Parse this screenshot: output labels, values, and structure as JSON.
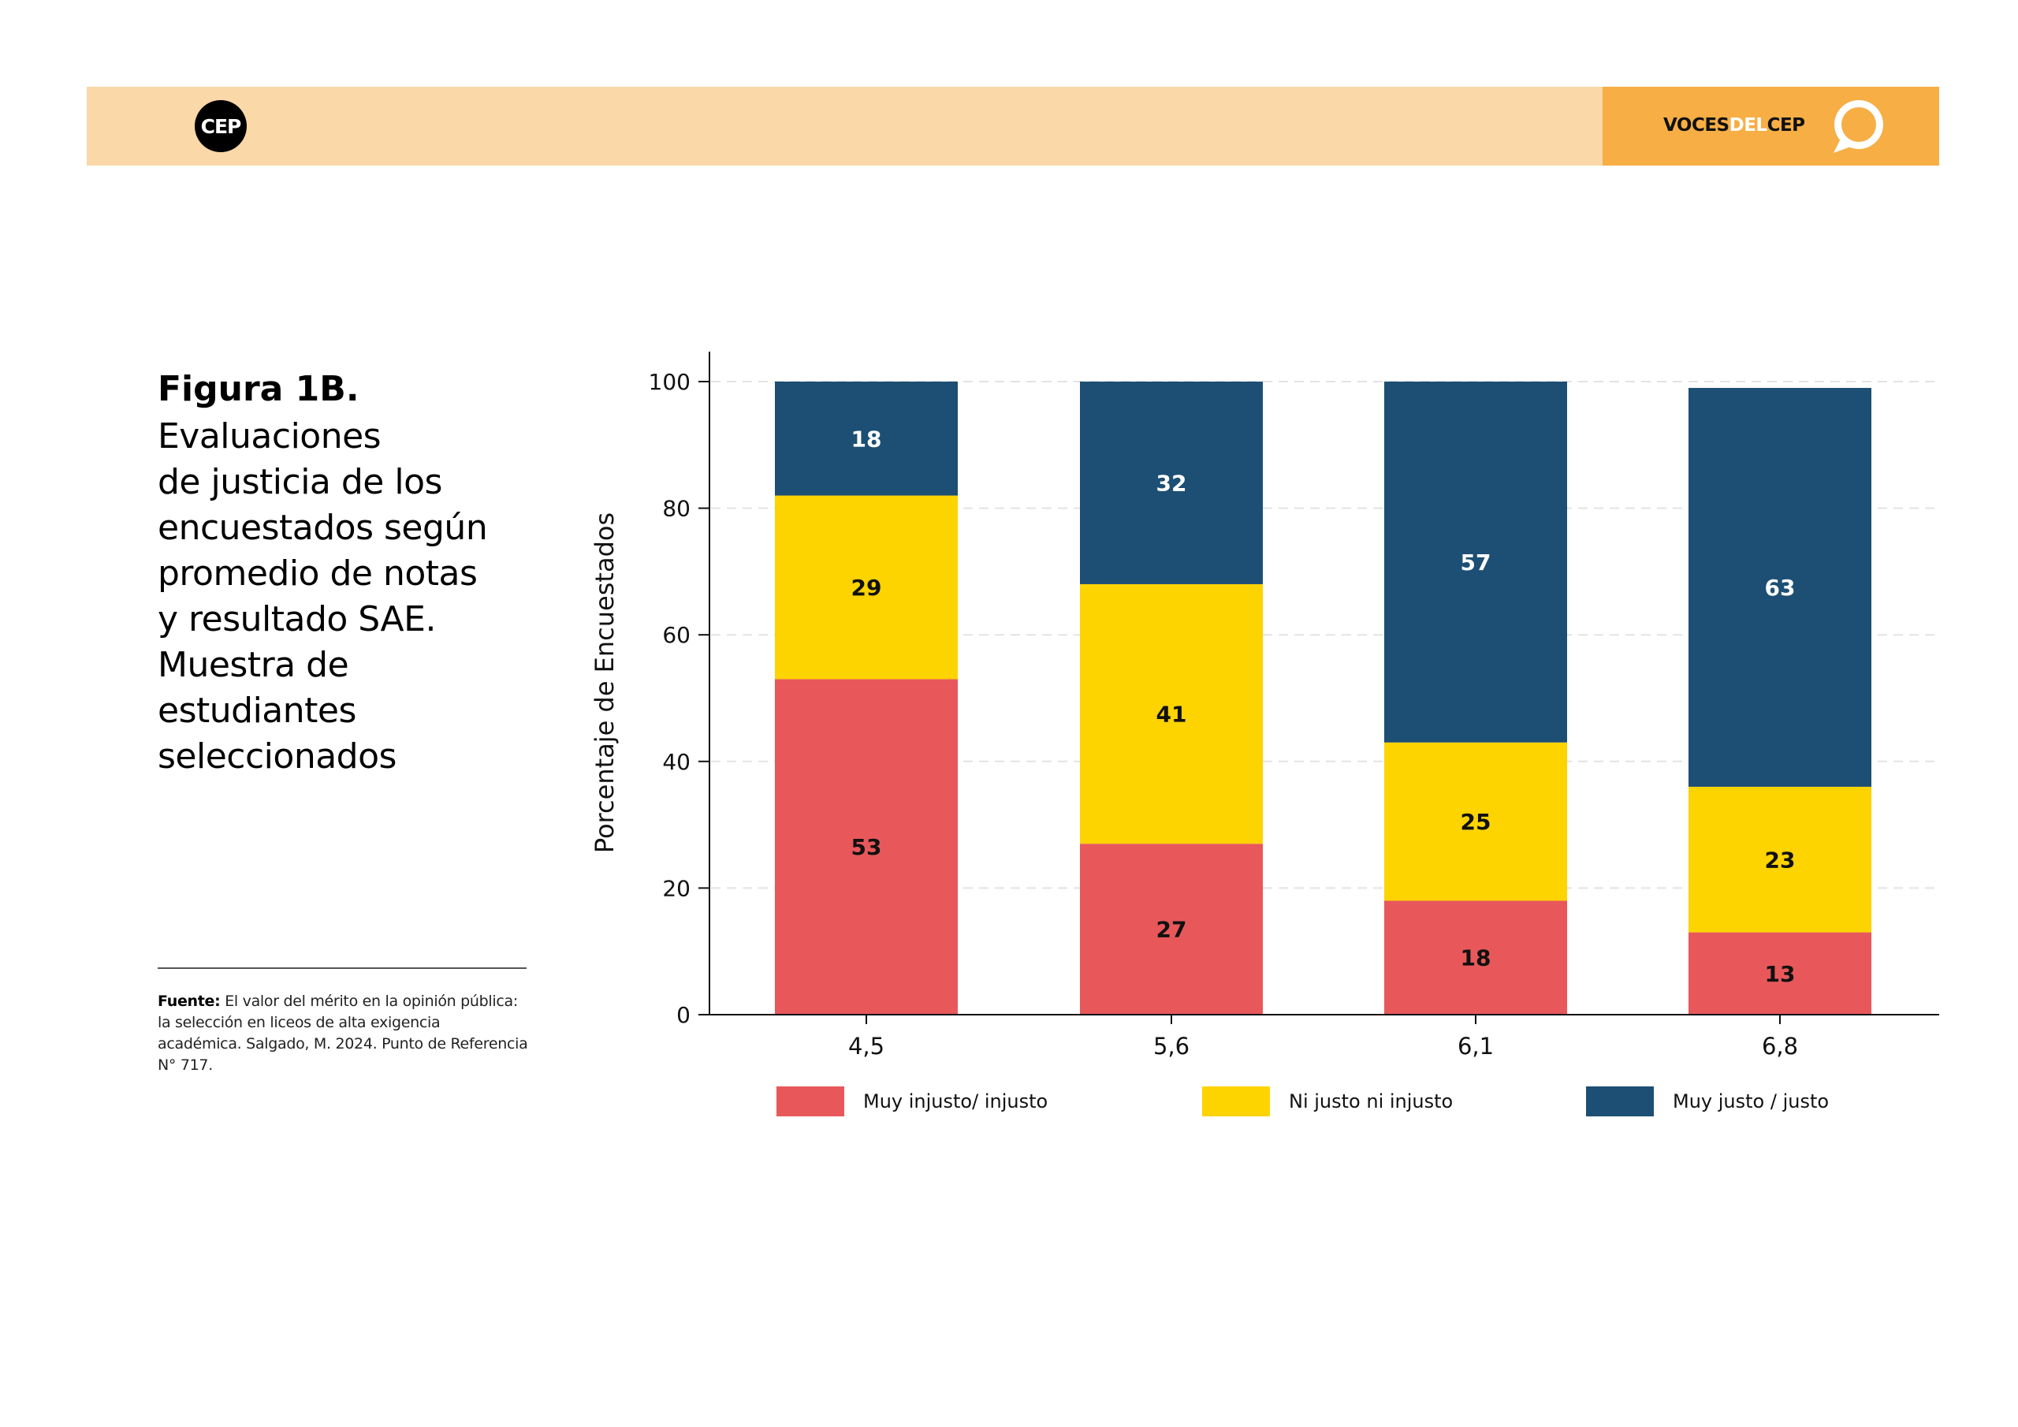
{
  "header": {
    "logo_left": "CEP",
    "logo_right_part1": "VOCES",
    "logo_right_part2": "DEL",
    "logo_right_part3": "CEP",
    "logo_right_icon": "speech-bubble-icon",
    "band_color": "#fad8a8",
    "accent_color": "#f6ae45"
  },
  "figure": {
    "label": "Figura 1B.",
    "title_lines": [
      "Evaluaciones",
      "de justicia de los",
      "encuestados según",
      "promedio de notas",
      "y resultado SAE.",
      "Muestra de",
      "estudiantes",
      "seleccionados"
    ]
  },
  "source": {
    "label": "Fuente:",
    "text": "El valor del mérito en la opinión pública: la selección en liceos de alta exigencia académica. Salgado, M. 2024. Punto de Referencia N° 717."
  },
  "chart_data": {
    "type": "bar",
    "stacked": true,
    "categories": [
      "4,5",
      "5,6",
      "6,1",
      "6,8"
    ],
    "series": [
      {
        "name": "Muy injusto/ injusto",
        "color": "#e8585a",
        "label_color": "#111111",
        "values": [
          53,
          27,
          18,
          13
        ]
      },
      {
        "name": "Ni justo ni injusto",
        "color": "#fdd300",
        "label_color": "#111111",
        "values": [
          29,
          41,
          25,
          23
        ]
      },
      {
        "name": "Muy justo / justo",
        "color": "#1c4f73",
        "label_color": "#ffffff",
        "values": [
          18,
          32,
          57,
          63
        ]
      }
    ],
    "ylabel": "Porcentaje de Encuestados",
    "xlabel": "",
    "ylim": [
      0,
      100
    ],
    "yticks": [
      0,
      20,
      40,
      60,
      80,
      100
    ],
    "grid": "horizontal dashed",
    "legend_position": "bottom"
  }
}
